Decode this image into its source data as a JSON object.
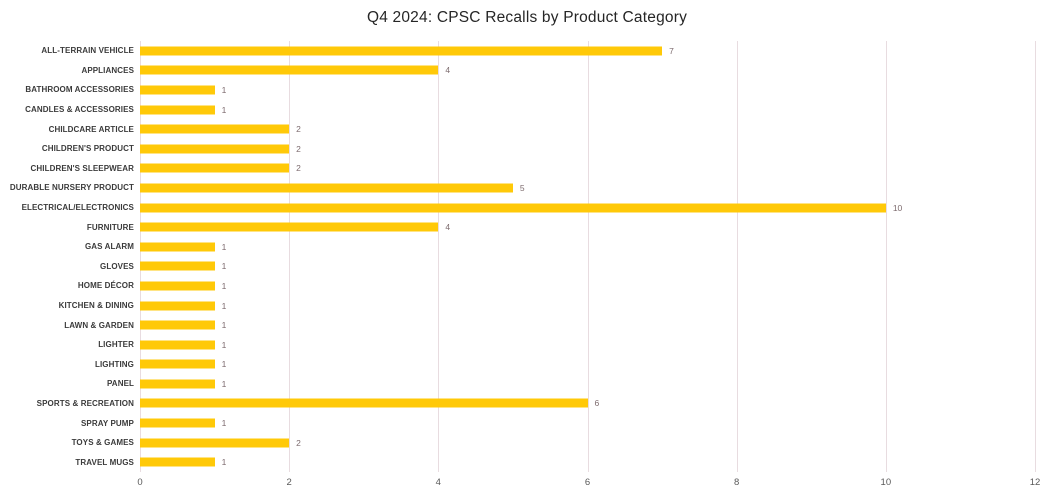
{
  "title": "Q4 2024: CPSC Recalls by Product Category",
  "colors": {
    "bar": "#FFC908",
    "gridline": "#E8DCE0",
    "value_label": "#7D6B6E",
    "category_label": "#3B3B3B",
    "tick_label": "#595959",
    "title_text": "#262626",
    "background": "#FFFFFF"
  },
  "chart_data": {
    "type": "bar",
    "orientation": "horizontal",
    "title": "Q4 2024: CPSC Recalls by Product Category",
    "categories": [
      "ALL-TERRAIN VEHICLE",
      "APPLIANCES",
      "BATHROOM ACCESSORIES",
      "CANDLES & ACCESSORIES",
      "CHILDCARE ARTICLE",
      "CHILDREN'S PRODUCT",
      "CHILDREN'S SLEEPWEAR",
      "DURABLE NURSERY PRODUCT",
      "ELECTRICAL/ELECTRONICS",
      "FURNITURE",
      "GAS ALARM",
      "GLOVES",
      "HOME DÉCOR",
      "KITCHEN & DINING",
      "LAWN & GARDEN",
      "LIGHTER",
      "LIGHTING",
      "PANEL",
      "SPORTS & RECREATION",
      "SPRAY PUMP",
      "TOYS & GAMES",
      "TRAVEL MUGS"
    ],
    "values": [
      7,
      4,
      1,
      1,
      2,
      2,
      2,
      5,
      10,
      4,
      1,
      1,
      1,
      1,
      1,
      1,
      1,
      1,
      6,
      1,
      2,
      1
    ],
    "xlabel": "",
    "ylabel": "",
    "xlim": [
      0,
      12
    ],
    "xticks": [
      0,
      2,
      4,
      6,
      8,
      10,
      12
    ],
    "grid": "vertical-only",
    "legend": "none",
    "data_labels": true
  }
}
